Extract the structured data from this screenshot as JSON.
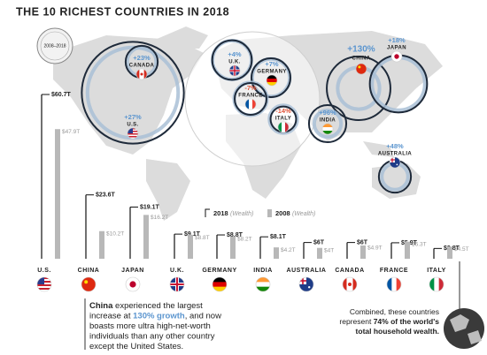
{
  "chart_data": {
    "type": "bar",
    "title": "THE 10 RICHEST COUNTRIES IN 2018",
    "period": "2008–2018",
    "categories": [
      "U.S.",
      "CHINA",
      "JAPAN",
      "U.K.",
      "GERMANY",
      "INDIA",
      "AUSTRALIA",
      "CANADA",
      "FRANCE",
      "ITALY"
    ],
    "series": [
      {
        "name": "2018",
        "note": "(Wealth)",
        "color": "#111111",
        "values": [
          60.7,
          23.6,
          19.1,
          9.1,
          8.8,
          8.1,
          6,
          6,
          5.9,
          3.8
        ],
        "value_labels": [
          "$60.7T",
          "$23.6T",
          "$19.1T",
          "$9.1T",
          "$8.8T",
          "$8.1T",
          "$6T",
          "$6T",
          "$5.9T",
          "$3.8T"
        ]
      },
      {
        "name": "2008",
        "note": "(Wealth)",
        "color": "#b8b8b8",
        "values": [
          47.9,
          10.2,
          16.2,
          8.8,
          8.2,
          4.2,
          4,
          4.9,
          6.3,
          4.5
        ],
        "value_labels": [
          "$47.9T",
          "$10.2T",
          "$16.2T",
          "$8.8T",
          "$8.2T",
          "$4.2T",
          "$4T",
          "$4.9T",
          "$6.3T",
          "$4.5T"
        ]
      }
    ],
    "growth": [
      "+27%",
      "+130%",
      "+18%",
      "+4%",
      "+7%",
      "+96%",
      "+48%",
      "+23%",
      "-7%",
      "-14%"
    ],
    "china_note": [
      [
        {
          "text": "China",
          "style": "bold"
        },
        {
          "text": " experienced the largest",
          "style": "plain"
        }
      ],
      [
        {
          "text": "increase at ",
          "style": "plain"
        },
        {
          "text": "130% growth",
          "style": "highlight"
        },
        {
          "text": ", and now",
          "style": "plain"
        }
      ],
      [
        {
          "text": "boasts more ultra high-net-worth",
          "style": "plain"
        }
      ],
      [
        {
          "text": "individuals than any other country",
          "style": "plain"
        }
      ],
      [
        {
          "text": "except the United States.",
          "style": "plain"
        }
      ]
    ],
    "total_note": [
      [
        {
          "text": "Combined, these countries",
          "style": "plain"
        }
      ],
      [
        {
          "text": "represent ",
          "style": "plain"
        },
        {
          "text": "74% of the world's",
          "style": "bold"
        }
      ],
      [
        {
          "text": "total household wealth.",
          "style": "bold"
        }
      ]
    ]
  }
}
